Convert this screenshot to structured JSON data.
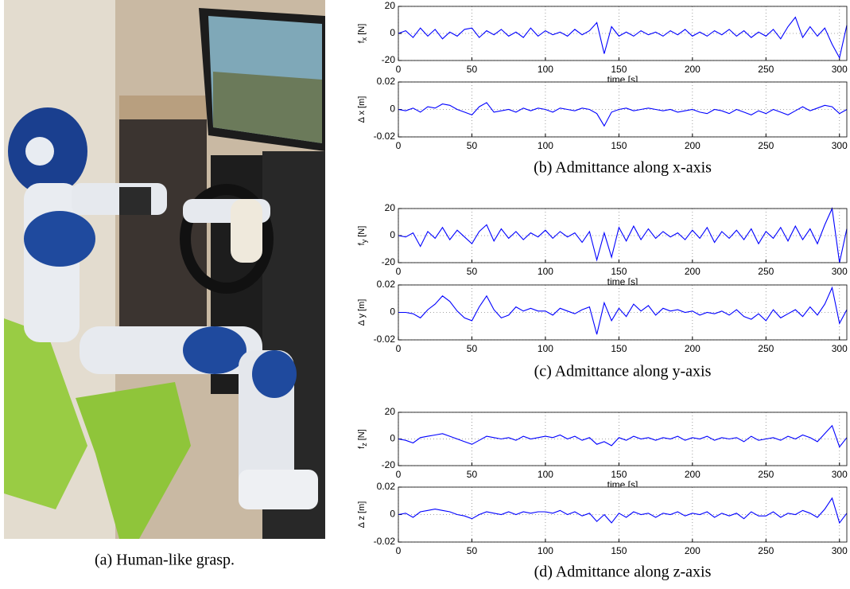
{
  "chart_data": [
    {
      "type": "line",
      "ylabel": "f",
      "ylabel_subscript": "x",
      "ylabel_unit": "[N]",
      "xlabel": "time [s]",
      "color": "#0000ff",
      "grid": true,
      "xlim": [
        0,
        305
      ],
      "xticks": [
        0,
        50,
        100,
        150,
        200,
        250,
        300
      ],
      "ylim": [
        -20,
        20
      ],
      "yticks": [
        -20,
        0,
        20
      ],
      "x": [
        0,
        5,
        10,
        15,
        20,
        25,
        30,
        35,
        40,
        45,
        50,
        55,
        60,
        65,
        70,
        75,
        80,
        85,
        90,
        95,
        100,
        105,
        110,
        115,
        120,
        125,
        130,
        135,
        140,
        145,
        150,
        155,
        160,
        165,
        170,
        175,
        180,
        185,
        190,
        195,
        200,
        205,
        210,
        215,
        220,
        225,
        230,
        235,
        240,
        245,
        250,
        255,
        260,
        265,
        270,
        275,
        280,
        285,
        290,
        295,
        300,
        305
      ],
      "values": [
        0,
        2,
        -3,
        4,
        -2,
        3,
        -4,
        1,
        -2,
        3,
        4,
        -3,
        2,
        -1,
        3,
        -2,
        1,
        -3,
        4,
        -2,
        2,
        -1,
        1,
        -2,
        3,
        -1,
        2,
        8,
        -15,
        5,
        -2,
        1,
        -2,
        2,
        -1,
        1,
        -2,
        2,
        -1,
        3,
        -2,
        1,
        -2,
        2,
        -1,
        3,
        -2,
        2,
        -3,
        1,
        -2,
        3,
        -4,
        5,
        12,
        -3,
        5,
        -2,
        4,
        -8,
        -18,
        6
      ]
    },
    {
      "type": "line",
      "ylabel": "Δ x [m]",
      "color": "#0000ff",
      "grid": true,
      "xlim": [
        0,
        305
      ],
      "xticks": [
        0,
        50,
        100,
        150,
        200,
        250,
        300
      ],
      "ylim": [
        -0.02,
        0.02
      ],
      "yticks": [
        -0.02,
        0,
        0.02
      ],
      "x": [
        0,
        5,
        10,
        15,
        20,
        25,
        30,
        35,
        40,
        45,
        50,
        55,
        60,
        65,
        70,
        75,
        80,
        85,
        90,
        95,
        100,
        105,
        110,
        115,
        120,
        125,
        130,
        135,
        140,
        145,
        150,
        155,
        160,
        165,
        170,
        175,
        180,
        185,
        190,
        195,
        200,
        205,
        210,
        215,
        220,
        225,
        230,
        235,
        240,
        245,
        250,
        255,
        260,
        265,
        270,
        275,
        280,
        285,
        290,
        295,
        300,
        305
      ],
      "values": [
        0,
        -0.001,
        0.001,
        -0.002,
        0.002,
        0.001,
        0.004,
        0.003,
        0,
        -0.002,
        -0.004,
        0.002,
        0.005,
        -0.002,
        -0.001,
        0,
        -0.002,
        0.001,
        -0.001,
        0.001,
        0,
        -0.002,
        0.001,
        0,
        -0.001,
        0.001,
        0,
        -0.003,
        -0.012,
        -0.002,
        0,
        0.001,
        -0.001,
        0,
        0.001,
        0,
        -0.001,
        0,
        -0.002,
        -0.001,
        0,
        -0.002,
        -0.003,
        0,
        -0.001,
        -0.003,
        0,
        -0.002,
        -0.004,
        -0.001,
        -0.003,
        0,
        -0.002,
        -0.004,
        -0.001,
        0.002,
        -0.001,
        0.001,
        0.003,
        0.002,
        -0.003,
        0
      ]
    },
    {
      "type": "line",
      "ylabel": "f",
      "ylabel_subscript": "y",
      "ylabel_unit": "[N]",
      "xlabel": "time [s]",
      "color": "#0000ff",
      "grid": true,
      "xlim": [
        0,
        305
      ],
      "xticks": [
        0,
        50,
        100,
        150,
        200,
        250,
        300
      ],
      "ylim": [
        -20,
        20
      ],
      "yticks": [
        -20,
        0,
        20
      ],
      "x": [
        0,
        5,
        10,
        15,
        20,
        25,
        30,
        35,
        40,
        45,
        50,
        55,
        60,
        65,
        70,
        75,
        80,
        85,
        90,
        95,
        100,
        105,
        110,
        115,
        120,
        125,
        130,
        135,
        140,
        145,
        150,
        155,
        160,
        165,
        170,
        175,
        180,
        185,
        190,
        195,
        200,
        205,
        210,
        215,
        220,
        225,
        230,
        235,
        240,
        245,
        250,
        255,
        260,
        265,
        270,
        275,
        280,
        285,
        290,
        295,
        300,
        305
      ],
      "values": [
        0,
        -1,
        2,
        -8,
        3,
        -2,
        6,
        -3,
        4,
        -1,
        -6,
        3,
        8,
        -4,
        5,
        -2,
        3,
        -3,
        2,
        -1,
        4,
        -2,
        3,
        -1,
        2,
        -5,
        3,
        -18,
        2,
        -16,
        6,
        -4,
        7,
        -3,
        5,
        -2,
        3,
        -1,
        2,
        -3,
        4,
        -2,
        6,
        -5,
        3,
        -2,
        4,
        -3,
        5,
        -6,
        3,
        -2,
        6,
        -4,
        7,
        -3,
        5,
        -6,
        8,
        20,
        -20,
        5
      ]
    },
    {
      "type": "line",
      "ylabel": "Δ y [m]",
      "color": "#0000ff",
      "grid": true,
      "xlim": [
        0,
        305
      ],
      "xticks": [
        0,
        50,
        100,
        150,
        200,
        250,
        300
      ],
      "ylim": [
        -0.02,
        0.02
      ],
      "yticks": [
        -0.02,
        0,
        0.02
      ],
      "x": [
        0,
        5,
        10,
        15,
        20,
        25,
        30,
        35,
        40,
        45,
        50,
        55,
        60,
        65,
        70,
        75,
        80,
        85,
        90,
        95,
        100,
        105,
        110,
        115,
        120,
        125,
        130,
        135,
        140,
        145,
        150,
        155,
        160,
        165,
        170,
        175,
        180,
        185,
        190,
        195,
        200,
        205,
        210,
        215,
        220,
        225,
        230,
        235,
        240,
        245,
        250,
        255,
        260,
        265,
        270,
        275,
        280,
        285,
        290,
        295,
        300,
        305
      ],
      "values": [
        0,
        0,
        -0.001,
        -0.004,
        0.002,
        0.006,
        0.012,
        0.008,
        0.001,
        -0.004,
        -0.006,
        0.004,
        0.012,
        0.002,
        -0.004,
        -0.002,
        0.004,
        0.001,
        0.003,
        0.001,
        0.001,
        -0.002,
        0.003,
        0.001,
        -0.001,
        0.002,
        0.004,
        -0.016,
        0.007,
        -0.006,
        0.003,
        -0.003,
        0.006,
        0.001,
        0.005,
        -0.002,
        0.003,
        0.001,
        0.002,
        0,
        0.001,
        -0.002,
        0,
        -0.001,
        0.001,
        -0.002,
        0.002,
        -0.003,
        -0.005,
        -0.001,
        -0.006,
        0.002,
        -0.004,
        -0.001,
        0.002,
        -0.003,
        0.004,
        -0.002,
        0.006,
        0.018,
        -0.008,
        0.002
      ]
    },
    {
      "type": "line",
      "ylabel": "f",
      "ylabel_subscript": "z",
      "ylabel_unit": "[N]",
      "xlabel": "time [s]",
      "color": "#0000ff",
      "grid": true,
      "xlim": [
        0,
        305
      ],
      "xticks": [
        0,
        50,
        100,
        150,
        200,
        250,
        300
      ],
      "ylim": [
        -20,
        20
      ],
      "yticks": [
        -20,
        0,
        20
      ],
      "x": [
        0,
        5,
        10,
        15,
        20,
        25,
        30,
        35,
        40,
        45,
        50,
        55,
        60,
        65,
        70,
        75,
        80,
        85,
        90,
        95,
        100,
        105,
        110,
        115,
        120,
        125,
        130,
        135,
        140,
        145,
        150,
        155,
        160,
        165,
        170,
        175,
        180,
        185,
        190,
        195,
        200,
        205,
        210,
        215,
        220,
        225,
        230,
        235,
        240,
        245,
        250,
        255,
        260,
        265,
        270,
        275,
        280,
        285,
        290,
        295,
        300,
        305
      ],
      "values": [
        0,
        -1,
        -3,
        1,
        2,
        3,
        4,
        2,
        0,
        -2,
        -4,
        -1,
        2,
        1,
        0,
        1,
        -1,
        2,
        0,
        1,
        2,
        1,
        3,
        0,
        2,
        -1,
        1,
        -4,
        -2,
        -5,
        1,
        -1,
        2,
        0,
        1,
        -1,
        1,
        0,
        2,
        -1,
        1,
        0,
        2,
        -1,
        1,
        0,
        1,
        -2,
        2,
        -1,
        0,
        1,
        -1,
        2,
        0,
        3,
        1,
        -2,
        4,
        10,
        -6,
        1
      ]
    },
    {
      "type": "line",
      "ylabel": "Δ z [m]",
      "color": "#0000ff",
      "grid": true,
      "xlim": [
        0,
        305
      ],
      "xticks": [
        0,
        50,
        100,
        150,
        200,
        250,
        300
      ],
      "ylim": [
        -0.02,
        0.02
      ],
      "yticks": [
        -0.02,
        0,
        0.02
      ],
      "x": [
        0,
        5,
        10,
        15,
        20,
        25,
        30,
        35,
        40,
        45,
        50,
        55,
        60,
        65,
        70,
        75,
        80,
        85,
        90,
        95,
        100,
        105,
        110,
        115,
        120,
        125,
        130,
        135,
        140,
        145,
        150,
        155,
        160,
        165,
        170,
        175,
        180,
        185,
        190,
        195,
        200,
        205,
        210,
        215,
        220,
        225,
        230,
        235,
        240,
        245,
        250,
        255,
        260,
        265,
        270,
        275,
        280,
        285,
        290,
        295,
        300,
        305
      ],
      "values": [
        0,
        0.001,
        -0.002,
        0.002,
        0.003,
        0.004,
        0.003,
        0.002,
        0,
        -0.001,
        -0.003,
        0,
        0.002,
        0.001,
        0,
        0.002,
        0,
        0.002,
        0.001,
        0.002,
        0.002,
        0.001,
        0.003,
        0,
        0.002,
        -0.001,
        0.001,
        -0.005,
        0,
        -0.006,
        0.001,
        -0.002,
        0.002,
        0,
        0.001,
        -0.002,
        0.001,
        0,
        0.002,
        -0.001,
        0.001,
        0,
        0.002,
        -0.002,
        0.001,
        -0.001,
        0.001,
        -0.003,
        0.002,
        -0.001,
        -0.001,
        0.002,
        -0.002,
        0.001,
        0,
        0.003,
        0.001,
        -0.002,
        0.004,
        0.012,
        -0.006,
        0.001
      ]
    }
  ],
  "captions": [
    "(a) Human-like grasp.",
    "(b) Admittance along x-axis",
    "(c) Admittance along y-axis",
    "(d) Admittance along z-axis"
  ]
}
